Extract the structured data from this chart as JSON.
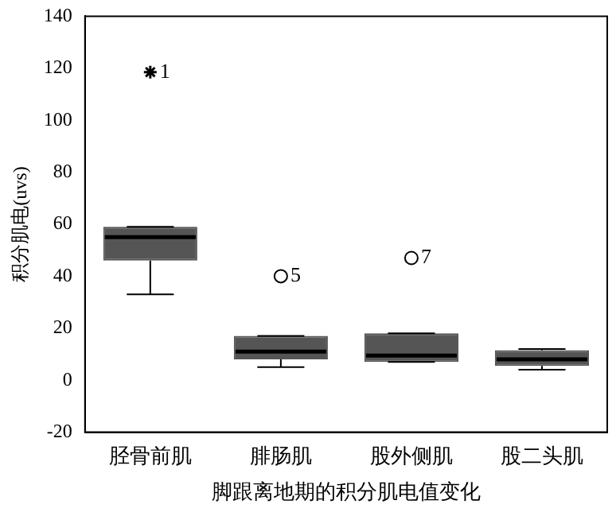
{
  "chart_data": {
    "type": "box",
    "xlabel": "脚跟离地期的积分肌电值变化",
    "ylabel": "积分肌电(uvs)",
    "categories": [
      "胫骨前肌",
      "腓肠肌",
      "股外侧肌",
      "股二头肌"
    ],
    "color": "#555555",
    "boxes": [
      {
        "low": 33,
        "q1": 46,
        "median": 55,
        "q3": 59,
        "high": 59
      },
      {
        "low": 5,
        "q1": 8,
        "median": 11,
        "q3": 17,
        "high": 17
      },
      {
        "low": 7,
        "q1": 7,
        "median": 9.5,
        "q3": 18,
        "high": 18
      },
      {
        "low": 4,
        "q1": 5.5,
        "median": 8,
        "q3": 11.5,
        "high": 12
      }
    ],
    "series": [
      {
        "type": "scatter",
        "x": [
          "胫骨前肌"
        ],
        "values": [
          118.5
        ],
        "color": "#000000",
        "marker": "cross"
      },
      {
        "type": "scatter",
        "x": [
          "腓肠肌",
          "股外侧肌"
        ],
        "values": [
          40,
          47
        ],
        "color": "#000000",
        "marker": "circle"
      }
    ],
    "annotations": [
      {
        "text": "1",
        "x": "胫骨前肌",
        "y": 118.5
      },
      {
        "text": "5",
        "x": "腓肠肌",
        "y": 40
      },
      {
        "text": "7",
        "x": "股外侧肌",
        "y": 47
      }
    ],
    "ylim": [
      -20,
      140
    ],
    "yticks": [
      -20,
      0,
      20,
      40,
      60,
      80,
      100,
      120,
      140
    ],
    "grid": false,
    "legend": false
  }
}
